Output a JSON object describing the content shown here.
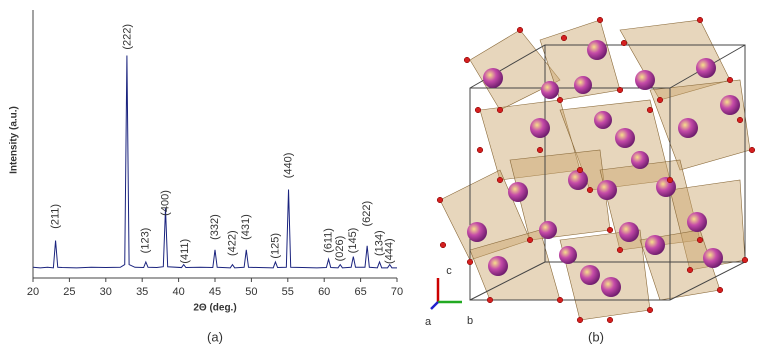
{
  "chart_data": {
    "type": "line",
    "ylabel": "Intensity (a.u.)",
    "xlabel": "2Θ (deg.)",
    "x": [
      20,
      21,
      22,
      22.8,
      23.1,
      23.4,
      24,
      26,
      28,
      30,
      32,
      32.6,
      32.9,
      33.2,
      34,
      35.2,
      35.5,
      35.8,
      37,
      37.9,
      38.2,
      38.5,
      40.4,
      40.7,
      41,
      43,
      44.7,
      45,
      45.3,
      47.1,
      47.4,
      47.7,
      49,
      49.3,
      49.6,
      51,
      53,
      53.3,
      53.6,
      54.8,
      55.1,
      55.4,
      57,
      59,
      60.3,
      60.6,
      60.9,
      61.9,
      62.2,
      62.5,
      63.7,
      64,
      64.3,
      65.6,
      65.9,
      66.2,
      67.3,
      67.6,
      67.9,
      68.7,
      69,
      69.3,
      70
    ],
    "values": [
      4,
      3.8,
      4,
      3.8,
      14,
      4,
      3.9,
      3.8,
      4,
      3.9,
      4,
      5,
      83,
      5,
      4,
      3.9,
      6,
      4,
      3.9,
      4.2,
      26,
      4.2,
      3.9,
      5,
      3.9,
      4,
      3.9,
      10.5,
      4,
      3.8,
      5,
      3.8,
      4,
      10.5,
      4,
      3.9,
      3.8,
      6,
      3.9,
      4,
      33,
      4,
      3.9,
      3.8,
      3.9,
      7,
      3.9,
      3.8,
      5,
      3.8,
      4,
      8,
      4,
      4,
      12,
      4,
      3.8,
      6,
      3.8,
      3.8,
      5,
      3.8,
      3.8
    ],
    "color": "#1a237e",
    "xlim": [
      20,
      70
    ],
    "xticks": [
      20,
      25,
      30,
      35,
      40,
      45,
      50,
      55,
      60,
      65,
      70
    ],
    "ylim": [
      0,
      100
    ],
    "annotations": [
      {
        "text": "(211)",
        "x": 23.1,
        "y": 23
      },
      {
        "text": "(222)",
        "x": 33,
        "y": 90
      },
      {
        "text": "(123)",
        "x": 35.5,
        "y": 14
      },
      {
        "text": "(400)",
        "x": 38.2,
        "y": 28
      },
      {
        "text": "(411)",
        "x": 40.9,
        "y": 10
      },
      {
        "text": "(332)",
        "x": 45,
        "y": 19
      },
      {
        "text": "(422)",
        "x": 47.4,
        "y": 13
      },
      {
        "text": "(431)",
        "x": 49.3,
        "y": 19
      },
      {
        "text": "(125)",
        "x": 53.3,
        "y": 12
      },
      {
        "text": "(440)",
        "x": 55.1,
        "y": 42
      },
      {
        "text": "(611)",
        "x": 60.6,
        "y": 14
      },
      {
        "text": "(026)",
        "x": 62.2,
        "y": 11
      },
      {
        "text": "(145)",
        "x": 64,
        "y": 14
      },
      {
        "text": "(622)",
        "x": 65.9,
        "y": 24
      },
      {
        "text": "(134)",
        "x": 67.6,
        "y": 13
      },
      {
        "text": "(444)",
        "x": 69,
        "y": 10
      }
    ]
  },
  "panel_labels": [
    "(a)",
    "(b)"
  ],
  "structure": {
    "axes": [
      "a",
      "b",
      "c"
    ]
  }
}
